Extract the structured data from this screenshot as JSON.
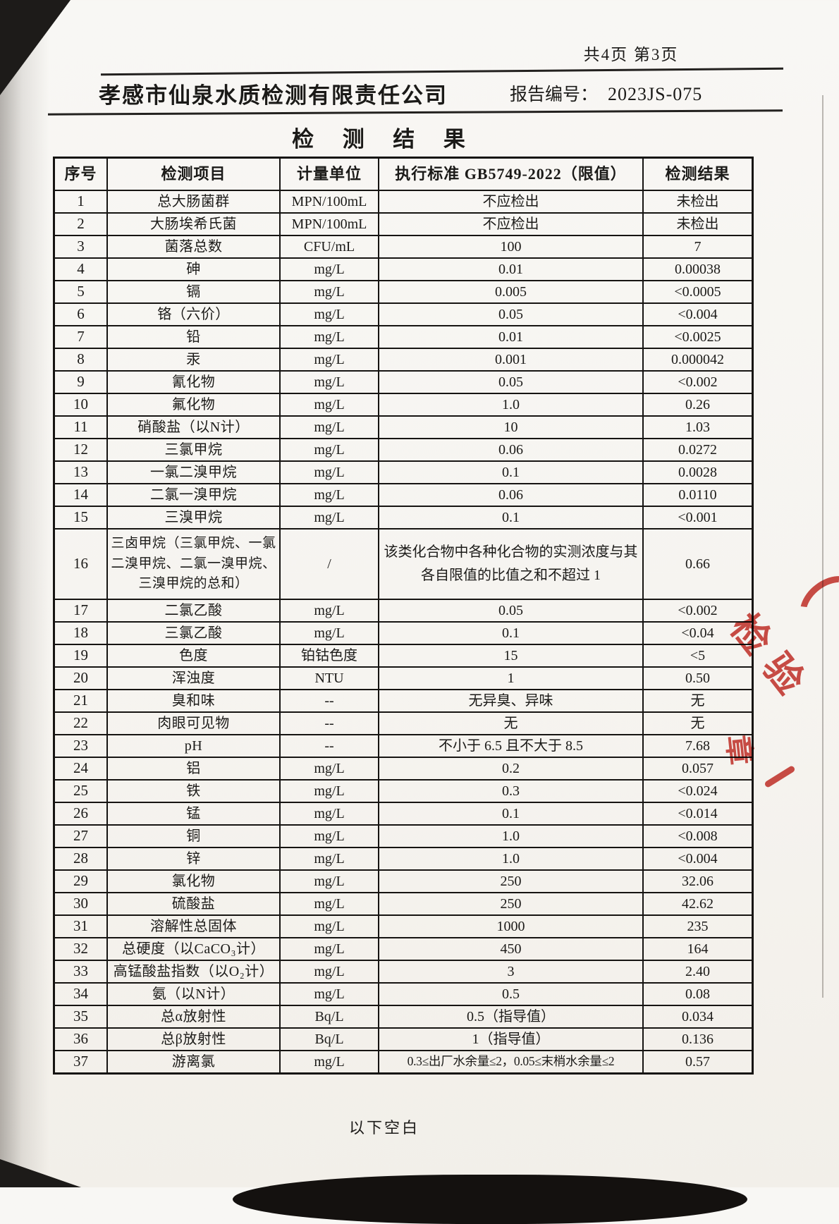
{
  "page": {
    "pagination": "共4页 第3页",
    "company": "孝感市仙泉水质检测有限责任公司",
    "report_label": "报告编号：",
    "report_number": "2023JS-075",
    "title": "检 测 结 果",
    "footer_note": "以下空白"
  },
  "table": {
    "headers": [
      "序号",
      "检测项目",
      "计量单位",
      "执行标准 GB5749-2022（限值）",
      "检测结果"
    ],
    "rows": [
      {
        "no": "1",
        "item": "总大肠菌群",
        "unit": "MPN/100mL",
        "standard": "不应检出",
        "result": "未检出"
      },
      {
        "no": "2",
        "item": "大肠埃希氏菌",
        "unit": "MPN/100mL",
        "standard": "不应检出",
        "result": "未检出"
      },
      {
        "no": "3",
        "item": "菌落总数",
        "unit": "CFU/mL",
        "standard": "100",
        "result": "7"
      },
      {
        "no": "4",
        "item": "砷",
        "unit": "mg/L",
        "standard": "0.01",
        "result": "0.00038"
      },
      {
        "no": "5",
        "item": "镉",
        "unit": "mg/L",
        "standard": "0.005",
        "result": "<0.0005"
      },
      {
        "no": "6",
        "item": "铬（六价）",
        "unit": "mg/L",
        "standard": "0.05",
        "result": "<0.004"
      },
      {
        "no": "7",
        "item": "铅",
        "unit": "mg/L",
        "standard": "0.01",
        "result": "<0.0025"
      },
      {
        "no": "8",
        "item": "汞",
        "unit": "mg/L",
        "standard": "0.001",
        "result": "0.000042"
      },
      {
        "no": "9",
        "item": "氰化物",
        "unit": "mg/L",
        "standard": "0.05",
        "result": "<0.002"
      },
      {
        "no": "10",
        "item": "氟化物",
        "unit": "mg/L",
        "standard": "1.0",
        "result": "0.26"
      },
      {
        "no": "11",
        "item": "硝酸盐（以N计）",
        "unit": "mg/L",
        "standard": "10",
        "result": "1.03"
      },
      {
        "no": "12",
        "item": "三氯甲烷",
        "unit": "mg/L",
        "standard": "0.06",
        "result": "0.0272"
      },
      {
        "no": "13",
        "item": "一氯二溴甲烷",
        "unit": "mg/L",
        "standard": "0.1",
        "result": "0.0028"
      },
      {
        "no": "14",
        "item": "二氯一溴甲烷",
        "unit": "mg/L",
        "standard": "0.06",
        "result": "0.0110"
      },
      {
        "no": "15",
        "item": "三溴甲烷",
        "unit": "mg/L",
        "standard": "0.1",
        "result": "<0.001"
      },
      {
        "no": "16",
        "item": "三卤甲烷（三氯甲烷、一氯二溴甲烷、二氯一溴甲烷、三溴甲烷的总和）",
        "unit": "/",
        "standard": "该类化合物中各种化合物的实测浓度与其各自限值的比值之和不超过 1",
        "result": "0.66",
        "cls": "thm-row"
      },
      {
        "no": "17",
        "item": "二氯乙酸",
        "unit": "mg/L",
        "standard": "0.05",
        "result": "<0.002"
      },
      {
        "no": "18",
        "item": "三氯乙酸",
        "unit": "mg/L",
        "standard": "0.1",
        "result": "<0.04"
      },
      {
        "no": "19",
        "item": "色度",
        "unit": "铂钴色度",
        "standard": "15",
        "result": "<5"
      },
      {
        "no": "20",
        "item": "浑浊度",
        "unit": "NTU",
        "standard": "1",
        "result": "0.50"
      },
      {
        "no": "21",
        "item": "臭和味",
        "unit": "--",
        "standard": "无异臭、异味",
        "result": "无"
      },
      {
        "no": "22",
        "item": "肉眼可见物",
        "unit": "--",
        "standard": "无",
        "result": "无"
      },
      {
        "no": "23",
        "item": "pH",
        "unit": "--",
        "standard": "不小于 6.5 且不大于 8.5",
        "result": "7.68"
      },
      {
        "no": "24",
        "item": "铝",
        "unit": "mg/L",
        "standard": "0.2",
        "result": "0.057"
      },
      {
        "no": "25",
        "item": "铁",
        "unit": "mg/L",
        "standard": "0.3",
        "result": "<0.024"
      },
      {
        "no": "26",
        "item": "锰",
        "unit": "mg/L",
        "standard": "0.1",
        "result": "<0.014"
      },
      {
        "no": "27",
        "item": "铜",
        "unit": "mg/L",
        "standard": "1.0",
        "result": "<0.008"
      },
      {
        "no": "28",
        "item": "锌",
        "unit": "mg/L",
        "standard": "1.0",
        "result": "<0.004"
      },
      {
        "no": "29",
        "item": "氯化物",
        "unit": "mg/L",
        "standard": "250",
        "result": "32.06"
      },
      {
        "no": "30",
        "item": "硫酸盐",
        "unit": "mg/L",
        "standard": "250",
        "result": "42.62"
      },
      {
        "no": "31",
        "item": "溶解性总固体",
        "unit": "mg/L",
        "standard": "1000",
        "result": "235"
      },
      {
        "no": "32",
        "item": "总硬度（以CaCO₃计）",
        "unit": "mg/L",
        "standard": "450",
        "result": "164"
      },
      {
        "no": "33",
        "item": "高锰酸盐指数（以O₂计）",
        "unit": "mg/L",
        "standard": "3",
        "result": "2.40"
      },
      {
        "no": "34",
        "item": "氨（以N计）",
        "unit": "mg/L",
        "standard": "0.5",
        "result": "0.08"
      },
      {
        "no": "35",
        "item": "总α放射性",
        "unit": "Bq/L",
        "standard": "0.5（指导值）",
        "result": "0.034"
      },
      {
        "no": "36",
        "item": "总β放射性",
        "unit": "Bq/L",
        "standard": "1（指导值）",
        "result": "0.136"
      },
      {
        "no": "37",
        "item": "游离氯",
        "unit": "mg/L",
        "standard": "0.3≤出厂水余量≤2，0.05≤末梢水余量≤2",
        "result": "0.57",
        "cls": "compact-standard"
      }
    ]
  },
  "stamp": {
    "color": "#c8352e",
    "fragments": [
      "检",
      "验",
      "章"
    ]
  }
}
